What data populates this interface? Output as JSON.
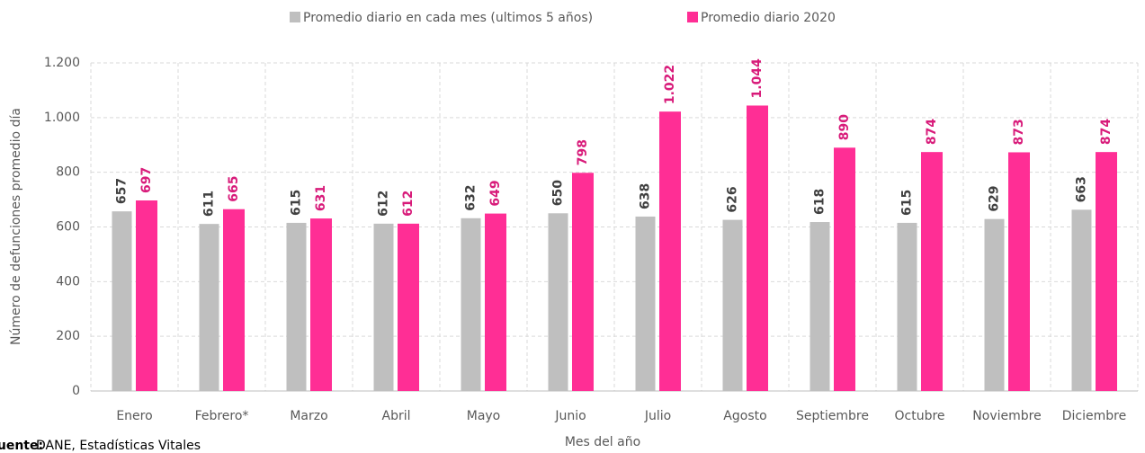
{
  "chart_data": {
    "type": "bar",
    "x_label": "Mes del año",
    "y_label": "Número de defunciones promedio día",
    "source": [
      "Fuente:",
      "DANE, Estadísticas Vitales"
    ],
    "categories": [
      "Enero",
      "Febrero*",
      "Marzo",
      "Abril",
      "Mayo",
      "Junio",
      "Julio",
      "Agosto",
      "Septiembre",
      "Octubre",
      "Noviembre",
      "Diciembre"
    ],
    "series": [
      {
        "name": "Promedio diario en cada mes (ultimos 5 años)",
        "color": "#bfbfbf",
        "label_color": "#404040",
        "values": [
          657,
          611,
          615,
          612,
          632,
          650,
          638,
          626,
          618,
          615,
          629,
          663
        ]
      },
      {
        "name": "Promedio diario 2020",
        "color": "#ff2e95",
        "label_color": "#d81b7a",
        "values": [
          697,
          665,
          631,
          612,
          649,
          798,
          1022,
          1044,
          890,
          874,
          873,
          874
        ],
        "value_labels": [
          "697",
          "665",
          "631",
          "612",
          "649",
          "798",
          "1.022",
          "1.044",
          "890",
          "874",
          "873",
          "874"
        ]
      }
    ],
    "ylim": [
      0,
      1200
    ],
    "yticks": [
      0,
      200,
      400,
      600,
      800,
      {
        "value": 1000,
        "label": "1.000"
      },
      {
        "value": 1200,
        "label": "1.200"
      }
    ],
    "grid": true,
    "legend": "top"
  }
}
